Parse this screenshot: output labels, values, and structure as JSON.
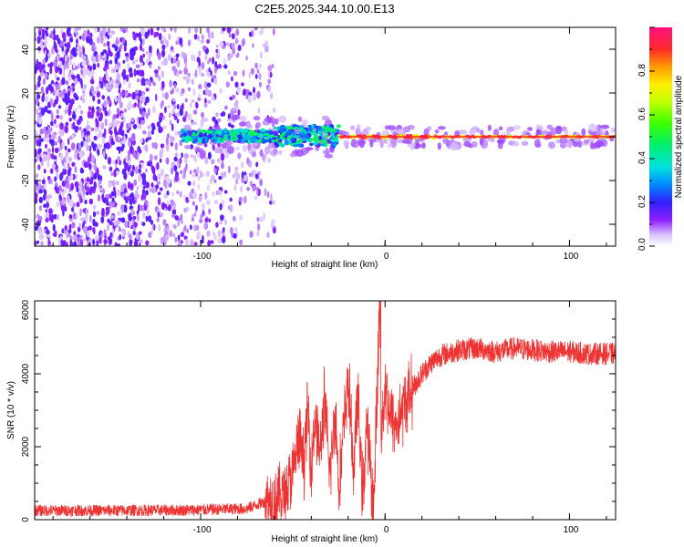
{
  "chart_data": [
    {
      "type": "heatmap",
      "title": "C2E5.2025.344.10.00.E13",
      "xlabel": "Height of straight line (km)",
      "ylabel": "Frequency (Hz)",
      "xlim": [
        -190,
        125
      ],
      "ylim": [
        -50,
        50
      ],
      "xticks": [
        "-100",
        "0",
        "100"
      ],
      "yticks": [
        "40",
        "20",
        "0",
        "-20",
        "-40"
      ],
      "colorbar": {
        "label": "Normalized spectral amplitude",
        "range": [
          0.0,
          1.0
        ],
        "ticks": [
          "0.0",
          "0.2",
          "0.4",
          "0.6",
          "0.8"
        ]
      },
      "regions": [
        {
          "name": "scattered noise",
          "x": [
            -190,
            -60
          ],
          "freq_range": [
            -50,
            50
          ],
          "amplitude": "low (0.0-0.2)"
        },
        {
          "name": "signal band onset",
          "x": [
            -110,
            -25
          ],
          "freq_range": [
            -5,
            6
          ],
          "amplitude": "0.2-0.5"
        },
        {
          "name": "strong carrier",
          "x": [
            -25,
            125
          ],
          "freq_center": 0,
          "amplitude": "0.6-1.0"
        }
      ]
    },
    {
      "type": "line",
      "title": "",
      "xlabel": "Height of straight line (km)",
      "ylabel": "SNR (10 * v/v)",
      "xlim": [
        -190,
        125
      ],
      "ylim": [
        0,
        6000
      ],
      "xticks": [
        "-100",
        "0",
        "100"
      ],
      "yticks": [
        "0",
        "2000",
        "4000",
        "6000"
      ],
      "series": [
        {
          "name": "SNR",
          "color": "#ee3333",
          "x": [
            -190,
            -150,
            -110,
            -75,
            -65,
            -55,
            -50,
            -47,
            -44,
            -42,
            -40,
            -38,
            -35,
            -33,
            -30,
            -27,
            -25,
            -22,
            -20,
            -17,
            -15,
            -12,
            -10,
            -8,
            -6,
            -4,
            -3,
            -2,
            0,
            3,
            6,
            10,
            15,
            20,
            25,
            30,
            40,
            50,
            60,
            70,
            80,
            90,
            100,
            110,
            125
          ],
          "y": [
            250,
            250,
            260,
            300,
            500,
            700,
            1200,
            2200,
            1600,
            3000,
            1500,
            2800,
            1800,
            3300,
            1200,
            3000,
            900,
            2700,
            3900,
            1300,
            3400,
            600,
            2700,
            1400,
            300,
            4200,
            6000,
            2300,
            3800,
            2800,
            2600,
            3100,
            3600,
            4000,
            4300,
            4500,
            4650,
            4700,
            4600,
            4700,
            4650,
            4600,
            4600,
            4550,
            4550
          ]
        }
      ]
    }
  ]
}
